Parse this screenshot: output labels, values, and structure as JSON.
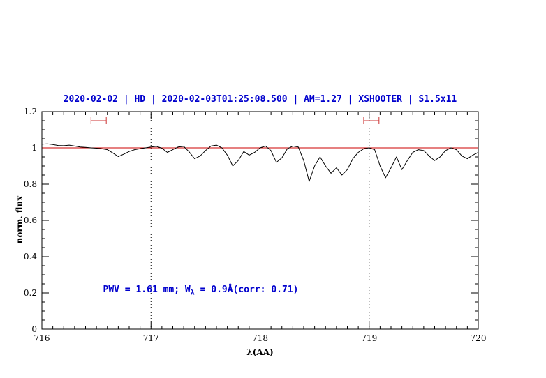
{
  "chart_data": {
    "type": "line",
    "title": "2020-02-02 | HD | 2020-02-03T01:25:08.500 | AM=1.27 | XSHOOTER | S1.5x11",
    "title_color": "#0000cd",
    "xlabel": "λ(AA)",
    "ylabel": "norm. flux",
    "xlim": [
      716,
      720
    ],
    "ylim": [
      0,
      1.2
    ],
    "grid": false,
    "legend": null,
    "x_ticks": [
      {
        "value": 716,
        "label": "716"
      },
      {
        "value": 717,
        "label": "717"
      },
      {
        "value": 718,
        "label": "718"
      },
      {
        "value": 719,
        "label": "719"
      },
      {
        "value": 720,
        "label": "720"
      }
    ],
    "y_ticks": [
      {
        "value": 0,
        "label": "0"
      },
      {
        "value": 0.2,
        "label": "0.2"
      },
      {
        "value": 0.4,
        "label": "0.4"
      },
      {
        "value": 0.6,
        "label": "0.6"
      },
      {
        "value": 0.8,
        "label": "0.8"
      },
      {
        "value": 1,
        "label": "1"
      },
      {
        "value": 1.2,
        "label": "1.2"
      }
    ],
    "x_minor_step": 0.1,
    "y_minor_step": 0.05,
    "vlines": [
      {
        "x": 717,
        "style": "dotted",
        "color": "#000000"
      },
      {
        "x": 719,
        "style": "dotted",
        "color": "#000000"
      }
    ],
    "hlines": [
      {
        "y": 1.0,
        "color": "#cc0000",
        "name": "continuum"
      }
    ],
    "range_markers": [
      {
        "x_min": 716.45,
        "x_max": 716.59,
        "y": 1.15,
        "color": "#cc3333"
      },
      {
        "x_min": 718.95,
        "x_max": 719.09,
        "y": 1.15,
        "color": "#cc3333"
      }
    ],
    "annotation": {
      "text": "PWV = 1.61 mm; Wλ = 0.9Å(corr: 0.71)",
      "parts": {
        "prefix": "PWV = 1.61 mm; W",
        "subscript": "λ",
        "suffix": " = 0.9Å(corr: 0.71)"
      },
      "x": 716.56,
      "y": 0.21,
      "color": "#0000cd"
    },
    "series": [
      {
        "name": "normalized spectrum",
        "color": "#000000",
        "x": [
          716.0,
          716.05,
          716.1,
          716.15,
          716.2,
          716.25,
          716.3,
          716.35,
          716.4,
          716.45,
          716.5,
          716.55,
          716.6,
          716.65,
          716.7,
          716.75,
          716.8,
          716.85,
          716.9,
          716.95,
          717.0,
          717.05,
          717.1,
          717.15,
          717.2,
          717.25,
          717.3,
          717.35,
          717.4,
          717.45,
          717.5,
          717.55,
          717.6,
          717.65,
          717.7,
          717.75,
          717.8,
          717.85,
          717.9,
          717.95,
          718.0,
          718.05,
          718.1,
          718.15,
          718.2,
          718.25,
          718.3,
          718.35,
          718.4,
          718.45,
          718.5,
          718.55,
          718.6,
          718.65,
          718.7,
          718.75,
          718.8,
          718.85,
          718.9,
          718.95,
          719.0,
          719.05,
          719.1,
          719.15,
          719.2,
          719.25,
          719.3,
          719.35,
          719.4,
          719.45,
          719.5,
          719.55,
          719.6,
          719.65,
          719.7,
          719.75,
          719.8,
          719.85,
          719.9,
          719.95,
          720.0
        ],
        "y": [
          1.02,
          1.022,
          1.018,
          1.013,
          1.012,
          1.015,
          1.01,
          1.005,
          1.003,
          1.0,
          0.998,
          0.995,
          0.99,
          0.972,
          0.952,
          0.965,
          0.98,
          0.99,
          0.995,
          1.0,
          1.005,
          1.008,
          0.998,
          0.975,
          0.99,
          1.005,
          1.008,
          0.978,
          0.94,
          0.955,
          0.985,
          1.01,
          1.015,
          1.0,
          0.96,
          0.9,
          0.93,
          0.98,
          0.96,
          0.975,
          1.0,
          1.01,
          0.985,
          0.92,
          0.945,
          0.995,
          1.01,
          1.005,
          0.93,
          0.815,
          0.9,
          0.95,
          0.9,
          0.86,
          0.89,
          0.85,
          0.88,
          0.94,
          0.975,
          0.995,
          1.0,
          0.99,
          0.9,
          0.835,
          0.89,
          0.95,
          0.88,
          0.93,
          0.975,
          0.99,
          0.985,
          0.955,
          0.93,
          0.95,
          0.985,
          1.0,
          0.99,
          0.955,
          0.94,
          0.96,
          0.975
        ]
      }
    ]
  }
}
